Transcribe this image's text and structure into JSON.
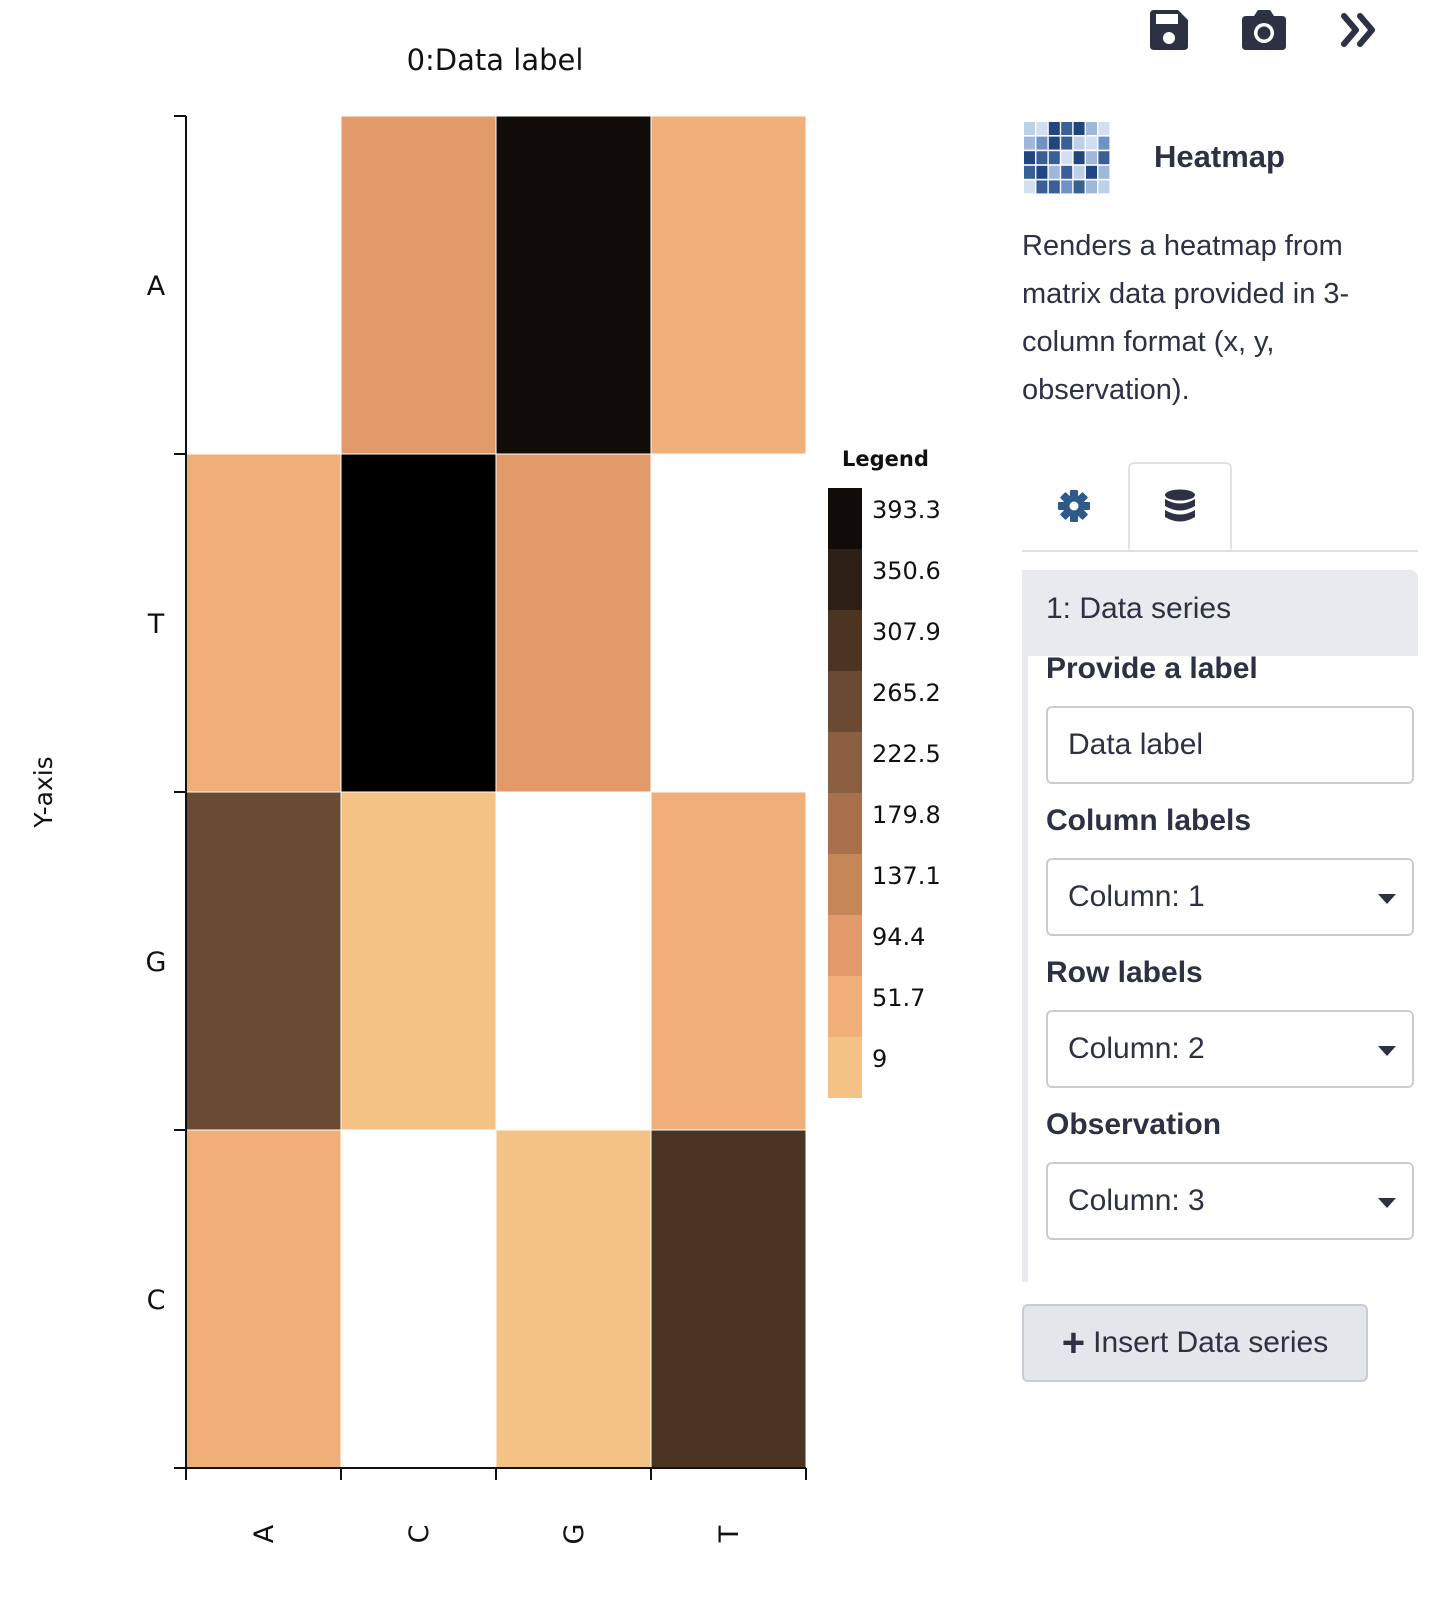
{
  "toolbar": {
    "save_icon": "save-icon",
    "camera_icon": "camera-icon",
    "expand_icon": "double-chevron-right-icon"
  },
  "plugin": {
    "icon": "heatmap-thumbnail-icon",
    "title": "Heatmap",
    "description": "Renders a heatmap from matrix data provided in 3-column format (x, y, observation)."
  },
  "tabs": [
    {
      "icon": "gear-icon",
      "active": false
    },
    {
      "icon": "database-icon",
      "active": true
    }
  ],
  "series": {
    "header": "1: Data series",
    "label_title": "Provide a label",
    "label_value": "Data label",
    "column_labels_title": "Column labels",
    "column_labels_value": "Column: 1",
    "row_labels_title": "Row labels",
    "row_labels_value": "Column: 2",
    "observation_title": "Observation",
    "observation_value": "Column: 3"
  },
  "insert_button": "Insert Data series",
  "chart_data": {
    "type": "heatmap",
    "title": "0:Data label",
    "xlabel": "",
    "ylabel": "Y-axis",
    "x_categories": [
      "A",
      "C",
      "G",
      "T"
    ],
    "y_categories": [
      "A",
      "T",
      "G",
      "C"
    ],
    "values": [
      [
        null,
        94.4,
        393.3,
        51.7
      ],
      [
        51.7,
        420,
        94.4,
        null
      ],
      [
        265.2,
        9,
        null,
        51.7
      ],
      [
        51.7,
        null,
        9,
        307.9
      ]
    ],
    "legend": {
      "title": "Legend",
      "ticks": [
        "393.3",
        "350.6",
        "307.9",
        "265.2",
        "222.5",
        "179.8",
        "137.1",
        "94.4",
        "51.7",
        "9"
      ],
      "colors": [
        "#120c08",
        "#2e2016",
        "#4c3422",
        "#6a4a32",
        "#8a5e40",
        "#a8714c",
        "#c78658",
        "#e29a6a",
        "#f0ae78",
        "#f4c285"
      ]
    },
    "grid": false
  }
}
